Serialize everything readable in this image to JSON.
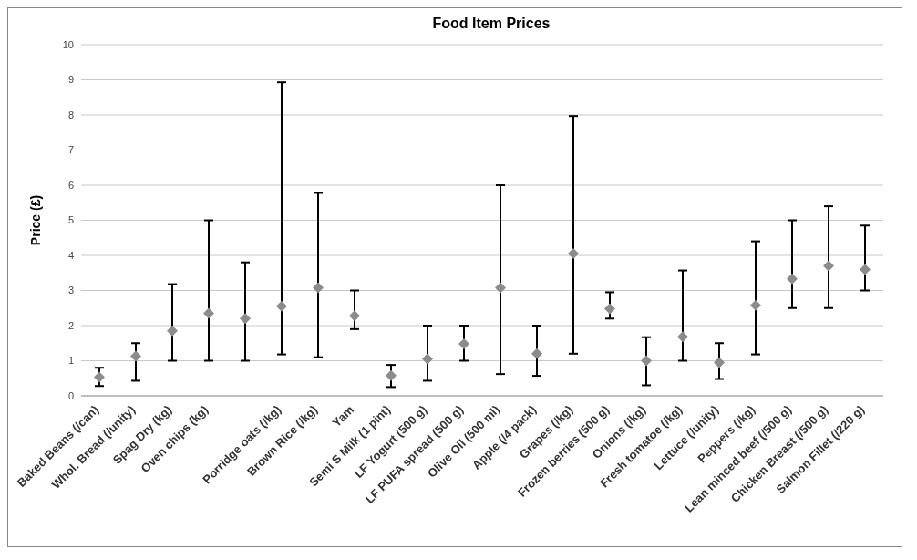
{
  "chart_data": {
    "type": "scatter",
    "title": "Food Item Prices",
    "ylabel": "Price (£)",
    "categories": [
      "Baked Beans (/can)",
      "Whol. Bread (/unity)",
      "Spag Dry (kg)",
      "Oven chips (kg)",
      null,
      "Porridge oats (/kg)",
      "Brown Rice (/kg)",
      "Yam",
      "Semi S Milk (1 pint)",
      "LF Yogurt (500 g)",
      "LF PUFA spread (500 g)",
      "Olive Oil (500 ml)",
      "Apple (/4 pack)",
      "Grapes (/kg)",
      "Frozen berries (500 g)",
      "Onions (/kg)",
      "Fresh tomatoe (/kg)",
      "Lettuce (/unity)",
      "Peppers (/kg)",
      "Lean minced beef (/500 g)",
      "Chicken Breast (/500 g)",
      "Salmon Fillet (/220 g)"
    ],
    "series": [
      {
        "color": "#8c8c8c",
        "values": [
          0.53,
          1.13,
          1.85,
          2.35,
          2.2,
          2.55,
          3.08,
          2.28,
          0.58,
          1.05,
          1.48,
          3.08,
          1.2,
          4.05,
          2.48,
          1.0,
          1.68,
          0.95,
          2.58,
          3.33,
          3.7,
          3.6
        ],
        "errors": [
          [
            0.28,
            0.8
          ],
          [
            0.43,
            1.5
          ],
          [
            1.0,
            3.18
          ],
          [
            1.0,
            5.0
          ],
          [
            1.0,
            3.8
          ],
          [
            1.18,
            8.93
          ],
          [
            1.1,
            5.78
          ],
          [
            1.9,
            3.0
          ],
          [
            0.25,
            0.88
          ],
          [
            0.43,
            2.0
          ],
          [
            1.0,
            2.0
          ],
          [
            0.62,
            6.0
          ],
          [
            0.57,
            2.0
          ],
          [
            1.2,
            7.97
          ],
          [
            2.2,
            2.95
          ],
          [
            0.3,
            1.67
          ],
          [
            1.0,
            3.57
          ],
          [
            0.48,
            1.5
          ],
          [
            1.18,
            4.4
          ],
          [
            2.5,
            5.0
          ],
          [
            2.5,
            5.4
          ],
          [
            3.0,
            4.85
          ]
        ]
      }
    ],
    "ylim": [
      0,
      10
    ],
    "yticks": [
      0,
      1,
      2,
      3,
      4,
      5,
      6,
      7,
      8,
      9,
      10
    ],
    "grid": "y",
    "marker": "diamond"
  }
}
